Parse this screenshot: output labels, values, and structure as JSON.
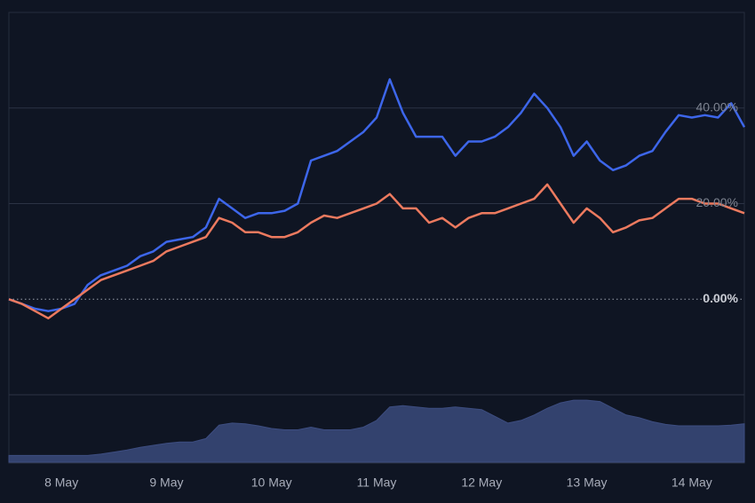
{
  "chart_data": [
    {
      "type": "line",
      "x": [
        7.5,
        7.625,
        7.75,
        7.875,
        8,
        8.125,
        8.25,
        8.375,
        8.5,
        8.625,
        8.75,
        8.875,
        9,
        9.125,
        9.25,
        9.375,
        9.5,
        9.625,
        9.75,
        9.875,
        10,
        10.125,
        10.25,
        10.375,
        10.5,
        10.625,
        10.75,
        10.875,
        11,
        11.125,
        11.25,
        11.375,
        11.5,
        11.625,
        11.75,
        11.875,
        12,
        12.125,
        12.25,
        12.375,
        12.5,
        12.625,
        12.75,
        12.875,
        13,
        13.125,
        13.25,
        13.375,
        13.5,
        13.625,
        13.75,
        13.875,
        14,
        14.125,
        14.25,
        14.375,
        14.5
      ],
      "series": [
        {
          "color": "#3d66ea",
          "values": [
            0,
            -1,
            -2,
            -2.5,
            -2,
            -1,
            3,
            5,
            6,
            7,
            9,
            10,
            12,
            12.5,
            13,
            15,
            21,
            19,
            17,
            18,
            18,
            18.5,
            20,
            29,
            30,
            31,
            33,
            35,
            38,
            46,
            39,
            34,
            34,
            34,
            30,
            33,
            33,
            34,
            36,
            39,
            43,
            40,
            36,
            30,
            33,
            29,
            27,
            28,
            30,
            31,
            35,
            38.5,
            38,
            38.5,
            38,
            41,
            36
          ]
        },
        {
          "color": "#ec7a5f",
          "values": [
            0,
            -1,
            -2.5,
            -4,
            -2,
            0,
            2,
            4,
            5,
            6,
            7,
            8,
            10,
            11,
            12,
            13,
            17,
            16,
            14,
            14,
            13,
            13,
            14,
            16,
            17.5,
            17,
            18,
            19,
            20,
            22,
            19,
            19,
            16,
            17,
            15,
            17,
            18,
            18,
            19,
            20,
            21,
            24,
            20,
            16,
            19,
            17,
            14,
            15,
            16.5,
            17,
            19,
            21,
            21,
            20,
            20,
            19,
            18
          ]
        }
      ],
      "xlim": [
        7.5,
        14.5
      ],
      "xticks": [
        {
          "value": 8,
          "label": "8 May"
        },
        {
          "value": 9,
          "label": "9 May"
        },
        {
          "value": 10,
          "label": "10 May"
        },
        {
          "value": 11,
          "label": "11 May"
        },
        {
          "value": 12,
          "label": "12 May"
        },
        {
          "value": 13,
          "label": "13 May"
        },
        {
          "value": 14,
          "label": "14 May"
        }
      ],
      "ylim": [
        -20,
        60
      ],
      "yticks": [
        {
          "value": 0,
          "label": "0.00%"
        },
        {
          "value": 20,
          "label": "20.00%"
        },
        {
          "value": 40,
          "label": "40.00%"
        }
      ],
      "grid": true
    },
    {
      "type": "area",
      "color": "#33426e",
      "x": [
        7.5,
        7.625,
        7.75,
        7.875,
        8,
        8.125,
        8.25,
        8.375,
        8.5,
        8.625,
        8.75,
        8.875,
        9,
        9.125,
        9.25,
        9.375,
        9.5,
        9.625,
        9.75,
        9.875,
        10,
        10.125,
        10.25,
        10.375,
        10.5,
        10.625,
        10.75,
        10.875,
        11,
        11.125,
        11.25,
        11.375,
        11.5,
        11.625,
        11.75,
        11.875,
        12,
        12.125,
        12.25,
        12.375,
        12.5,
        12.625,
        12.75,
        12.875,
        13,
        13.125,
        13.25,
        13.375,
        13.5,
        13.625,
        13.75,
        13.875,
        14,
        14.125,
        14.25,
        14.375,
        14.5
      ],
      "values": [
        10,
        10,
        10,
        10,
        10,
        10,
        10,
        12,
        15,
        18,
        22,
        25,
        28,
        30,
        30,
        35,
        55,
        58,
        57,
        54,
        50,
        48,
        48,
        52,
        48,
        48,
        48,
        52,
        62,
        82,
        84,
        82,
        80,
        80,
        82,
        80,
        78,
        68,
        58,
        62,
        70,
        80,
        88,
        92,
        92,
        90,
        80,
        70,
        66,
        60,
        56,
        54,
        54,
        54,
        54,
        55,
        57
      ],
      "xlim": [
        7.5,
        14.5
      ],
      "ylim": [
        0,
        100
      ]
    }
  ]
}
